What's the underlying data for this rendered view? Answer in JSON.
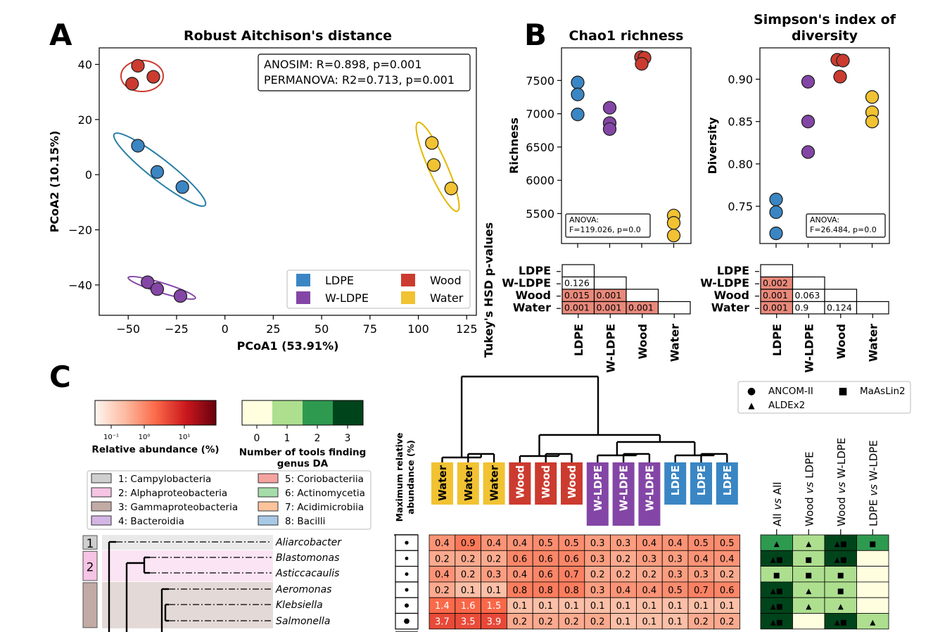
{
  "panel_labels": [
    "A",
    "B",
    "C"
  ],
  "colors": {
    "LDPE": "#3a86c4",
    "W-LDPE": "#8446a6",
    "Wood": "#cc3b2f",
    "Water": "#f1c232"
  },
  "chart_data": [
    {
      "type": "scatter",
      "title": "Robust Aitchison's distance",
      "xlabel": "PCoA1 (53.91%)",
      "ylabel": "PCoA2 (10.15%)",
      "xlim": [
        -65,
        130
      ],
      "ylim": [
        -51,
        46
      ],
      "xticks": [
        -50,
        -25,
        0,
        25,
        50,
        75,
        100,
        125
      ],
      "xtick_labels": [
        "−50",
        "−25",
        "0",
        "25",
        "50",
        "75",
        "100",
        "125"
      ],
      "yticks": [
        40,
        20,
        0,
        -20,
        -40
      ],
      "ytick_labels": [
        "40",
        "20",
        "0",
        "−20",
        "−40"
      ],
      "stats": [
        "ANOSIM: R=0.898, p=0.001",
        "PERMANOVA: R2=0.713, p=0.001"
      ],
      "legend": [
        "LDPE",
        "W-LDPE",
        "Wood",
        "Water"
      ],
      "legend_position": "bottom-right",
      "series": [
        {
          "name": "LDPE",
          "points": [
            [
              -45,
              10.5
            ],
            [
              -35,
              1
            ],
            [
              -22,
              -4.5
            ]
          ]
        },
        {
          "name": "W-LDPE",
          "points": [
            [
              -40,
              -39
            ],
            [
              -35,
              -41.5
            ],
            [
              -23,
              -44
            ]
          ]
        },
        {
          "name": "Wood",
          "points": [
            [
              -45,
              39.5
            ],
            [
              -37,
              35.5
            ],
            [
              -48,
              33
            ]
          ]
        },
        {
          "name": "Water",
          "points": [
            [
              107,
              11.5
            ],
            [
              108,
              3.5
            ],
            [
              117,
              -5
            ]
          ]
        }
      ]
    },
    {
      "type": "scatter",
      "title": "Chao1 richness",
      "ylabel": "Richness",
      "categories": [
        "LDPE",
        "W-LDPE",
        "Wood",
        "Water"
      ],
      "ylim": [
        5050,
        7990
      ],
      "yticks": [
        5500,
        6000,
        6500,
        7000,
        7500
      ],
      "anova": [
        "ANOVA:",
        "F=119.026, p=0.0"
      ],
      "series": [
        {
          "name": "LDPE",
          "values": [
            7470,
            7290,
            6990
          ]
        },
        {
          "name": "W-LDPE",
          "values": [
            7090,
            6860,
            6770
          ]
        },
        {
          "name": "Wood",
          "values": [
            7850,
            7840,
            7750
          ]
        },
        {
          "name": "Water",
          "values": [
            5470,
            5360,
            5170
          ]
        }
      ],
      "tukey": {
        "ylabel": "Tukey's HSD p-values",
        "rows": [
          "LDPE",
          "W-LDPE",
          "Wood",
          "Water"
        ],
        "cells": [
          [],
          [
            "0.126"
          ],
          [
            "0.015",
            "0.001"
          ],
          [
            "0.001",
            "0.001",
            "0.001"
          ]
        ]
      }
    },
    {
      "type": "scatter",
      "title": "Simpson's index of diversity",
      "ylabel": "Diversity",
      "categories": [
        "LDPE",
        "W-LDPE",
        "Wood",
        "Water"
      ],
      "ylim": [
        0.706,
        0.937
      ],
      "yticks": [
        0.75,
        0.8,
        0.85,
        0.9
      ],
      "ytick_labels": [
        "0.75",
        "0.80",
        "0.85",
        "0.90"
      ],
      "anova": [
        "ANOVA:",
        "F=26.484, p=0.0"
      ],
      "series": [
        {
          "name": "LDPE",
          "values": [
            0.758,
            0.743,
            0.718
          ]
        },
        {
          "name": "W-LDPE",
          "values": [
            0.897,
            0.85,
            0.814
          ]
        },
        {
          "name": "Wood",
          "values": [
            0.923,
            0.922,
            0.903
          ]
        },
        {
          "name": "Water",
          "values": [
            0.879,
            0.861,
            0.85
          ]
        }
      ],
      "tukey": {
        "rows": [
          "LDPE",
          "W-LDPE",
          "Wood",
          "Water"
        ],
        "cells": [
          [],
          [
            "0.002"
          ],
          [
            "0.001",
            "0.063"
          ],
          [
            "0.001",
            "0.9",
            "0.124"
          ]
        ]
      }
    },
    {
      "type": "heatmap",
      "colorbar_abundance": {
        "label": "Relative abundance (%)",
        "ticks": [
          "10⁻¹",
          "10⁰",
          "10¹"
        ]
      },
      "colorbar_tools": {
        "label": [
          "Number of tools finding",
          "genus DA"
        ],
        "ticks": [
          "0",
          "1",
          "2",
          "3"
        ],
        "colors": [
          "#ffffe0",
          "#addf8f",
          "#2e9a50",
          "#00441b"
        ]
      },
      "class_legend": [
        "1: Campylobacteria",
        "2: Alphaproteobacteria",
        "3: Gammaproteobacteria",
        "4: Bacteroidia",
        "5: Coriobacteriia",
        "6: Actinomycetia",
        "7: Acidimicrobiia",
        "8: Bacilli"
      ],
      "class_colors": [
        "#cfcfcf",
        "#f6c4e4",
        "#c2aaa5",
        "#d4b5e4",
        "#f5a3a1",
        "#a6dcaa",
        "#fdc39b",
        "#a7c9e6"
      ],
      "max_label": [
        "Maximum relative",
        "abundance (%)"
      ],
      "samples": [
        "Water",
        "Water",
        "Water",
        "Wood",
        "Wood",
        "Wood",
        "W-LDPE",
        "W-LDPE",
        "W-LDPE",
        "LDPE",
        "LDPE",
        "LDPE"
      ],
      "genera": [
        {
          "name": "Aliarcobacter",
          "class": "1",
          "values": [
            "0.4",
            "0.9",
            "0.4",
            "0.4",
            "0.5",
            "0.5",
            "0.3",
            "0.3",
            "0.4",
            "0.4",
            "0.5",
            "0.5"
          ],
          "tools": [
            2,
            1,
            3,
            2
          ],
          "marks": [
            "▲",
            "▲",
            "▲■",
            "■"
          ]
        },
        {
          "name": "Blastomonas",
          "class": "2",
          "values": [
            "0.2",
            "0.2",
            "0.2",
            "0.6",
            "0.6",
            "0.6",
            "0.3",
            "0.2",
            "0.3",
            "0.3",
            "0.4",
            "0.4"
          ],
          "tools": [
            3,
            1,
            3,
            0
          ],
          "marks": [
            "▲■",
            "■",
            "▲■",
            ""
          ]
        },
        {
          "name": "Asticcacaulis",
          "class": "2",
          "values": [
            "0.4",
            "0.2",
            "0.3",
            "0.4",
            "0.6",
            "0.7",
            "0.2",
            "0.2",
            "0.2",
            "0.3",
            "0.3",
            "0.2"
          ],
          "tools": [
            1,
            1,
            1,
            0
          ],
          "marks": [
            "■",
            "■",
            "■",
            ""
          ]
        },
        {
          "name": "Aeromonas",
          "class": "3",
          "values": [
            "0.2",
            "0.1",
            "0.1",
            "0.8",
            "0.8",
            "0.8",
            "0.3",
            "0.4",
            "0.4",
            "0.5",
            "0.7",
            "0.6"
          ],
          "tools": [
            3,
            1,
            1,
            0
          ],
          "marks": [
            "▲■",
            "▲",
            "■",
            ""
          ]
        },
        {
          "name": "Klebsiella",
          "class": "3",
          "values": [
            "1.4",
            "1.6",
            "1.5",
            "0.1",
            "0.1",
            "0.1",
            "0.1",
            "0.1",
            "0.1",
            "0.1",
            "0.1",
            "0.1"
          ],
          "tools": [
            3,
            1,
            1,
            0
          ],
          "marks": [
            "▲■",
            "▲",
            "▲",
            ""
          ]
        },
        {
          "name": "Salmonella",
          "class": "3",
          "values": [
            "3.7",
            "3.5",
            "3.9",
            "0.2",
            "0.2",
            "0.2",
            "0.2",
            "0.1",
            "0.1",
            "0.1",
            "0.2",
            "0.2"
          ],
          "tools": [
            3,
            0,
            3,
            1
          ],
          "marks": [
            "▲■",
            "",
            "▲■",
            "▲"
          ]
        }
      ],
      "comparisons": [
        "All vs All",
        "Wood vs LDPE",
        "Wood vs W-LDPE",
        "LDPE vs W-LDPE"
      ],
      "methods_legend": [
        [
          "●",
          "ANCOM-II"
        ],
        [
          "■",
          "MaAsLin2"
        ],
        [
          "▲",
          "ALDEx2"
        ]
      ]
    }
  ]
}
